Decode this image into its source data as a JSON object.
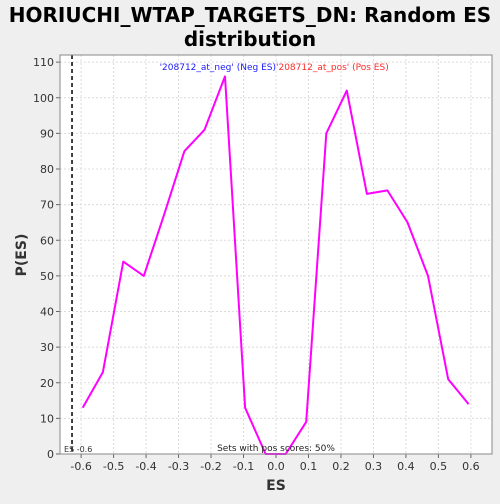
{
  "chart_data": {
    "type": "line",
    "title_lines": [
      "HORIUCHI_WTAP_TARGETS_DN: Random ES",
      "distribution"
    ],
    "xlabel": "ES",
    "ylabel": "P(ES)",
    "xlim": [
      -0.665,
      0.665
    ],
    "ylim": [
      0,
      112
    ],
    "x_ticks": [
      -0.6,
      -0.5,
      -0.4,
      -0.3,
      -0.2,
      -0.1,
      0.0,
      0.1,
      0.2,
      0.3,
      0.4,
      0.5,
      0.6
    ],
    "x_tick_labels": [
      "-0.6",
      "-0.5",
      "-0.4",
      "-0.3",
      "-0.2",
      "-0.1",
      "0.0",
      "0.1",
      "0.2",
      "0.3",
      "0.4",
      "0.5",
      "0.6"
    ],
    "y_ticks": [
      0,
      10,
      20,
      30,
      40,
      50,
      60,
      70,
      80,
      90,
      100,
      110
    ],
    "y_tick_labels": [
      "0",
      "10",
      "20",
      "30",
      "40",
      "50",
      "60",
      "70",
      "80",
      "90",
      "100",
      "110"
    ],
    "grid": true,
    "series": [
      {
        "color": "#ff00ff",
        "x": [
          -0.595,
          -0.533,
          -0.47,
          -0.407,
          -0.345,
          -0.282,
          -0.22,
          -0.157,
          -0.095,
          -0.032,
          0.03,
          0.093,
          0.155,
          0.218,
          0.28,
          0.343,
          0.405,
          0.468,
          0.53,
          0.593
        ],
        "y": [
          13,
          23,
          54,
          50,
          67,
          85,
          91,
          106,
          13,
          0,
          0,
          9,
          90,
          102,
          73,
          74,
          65,
          50,
          21,
          14
        ]
      }
    ],
    "legend": {
      "neg": {
        "text": "'208712_at_neg' (Neg ES)",
        "color": "#1a1aff"
      },
      "pos": {
        "text": "'208712_at_pos' (Pos ES)",
        "color": "#ff2a2a"
      }
    },
    "marker_line": {
      "x": -0.628,
      "label": "ES -0.6"
    },
    "annotation": "Sets with pos scores: 50%"
  }
}
